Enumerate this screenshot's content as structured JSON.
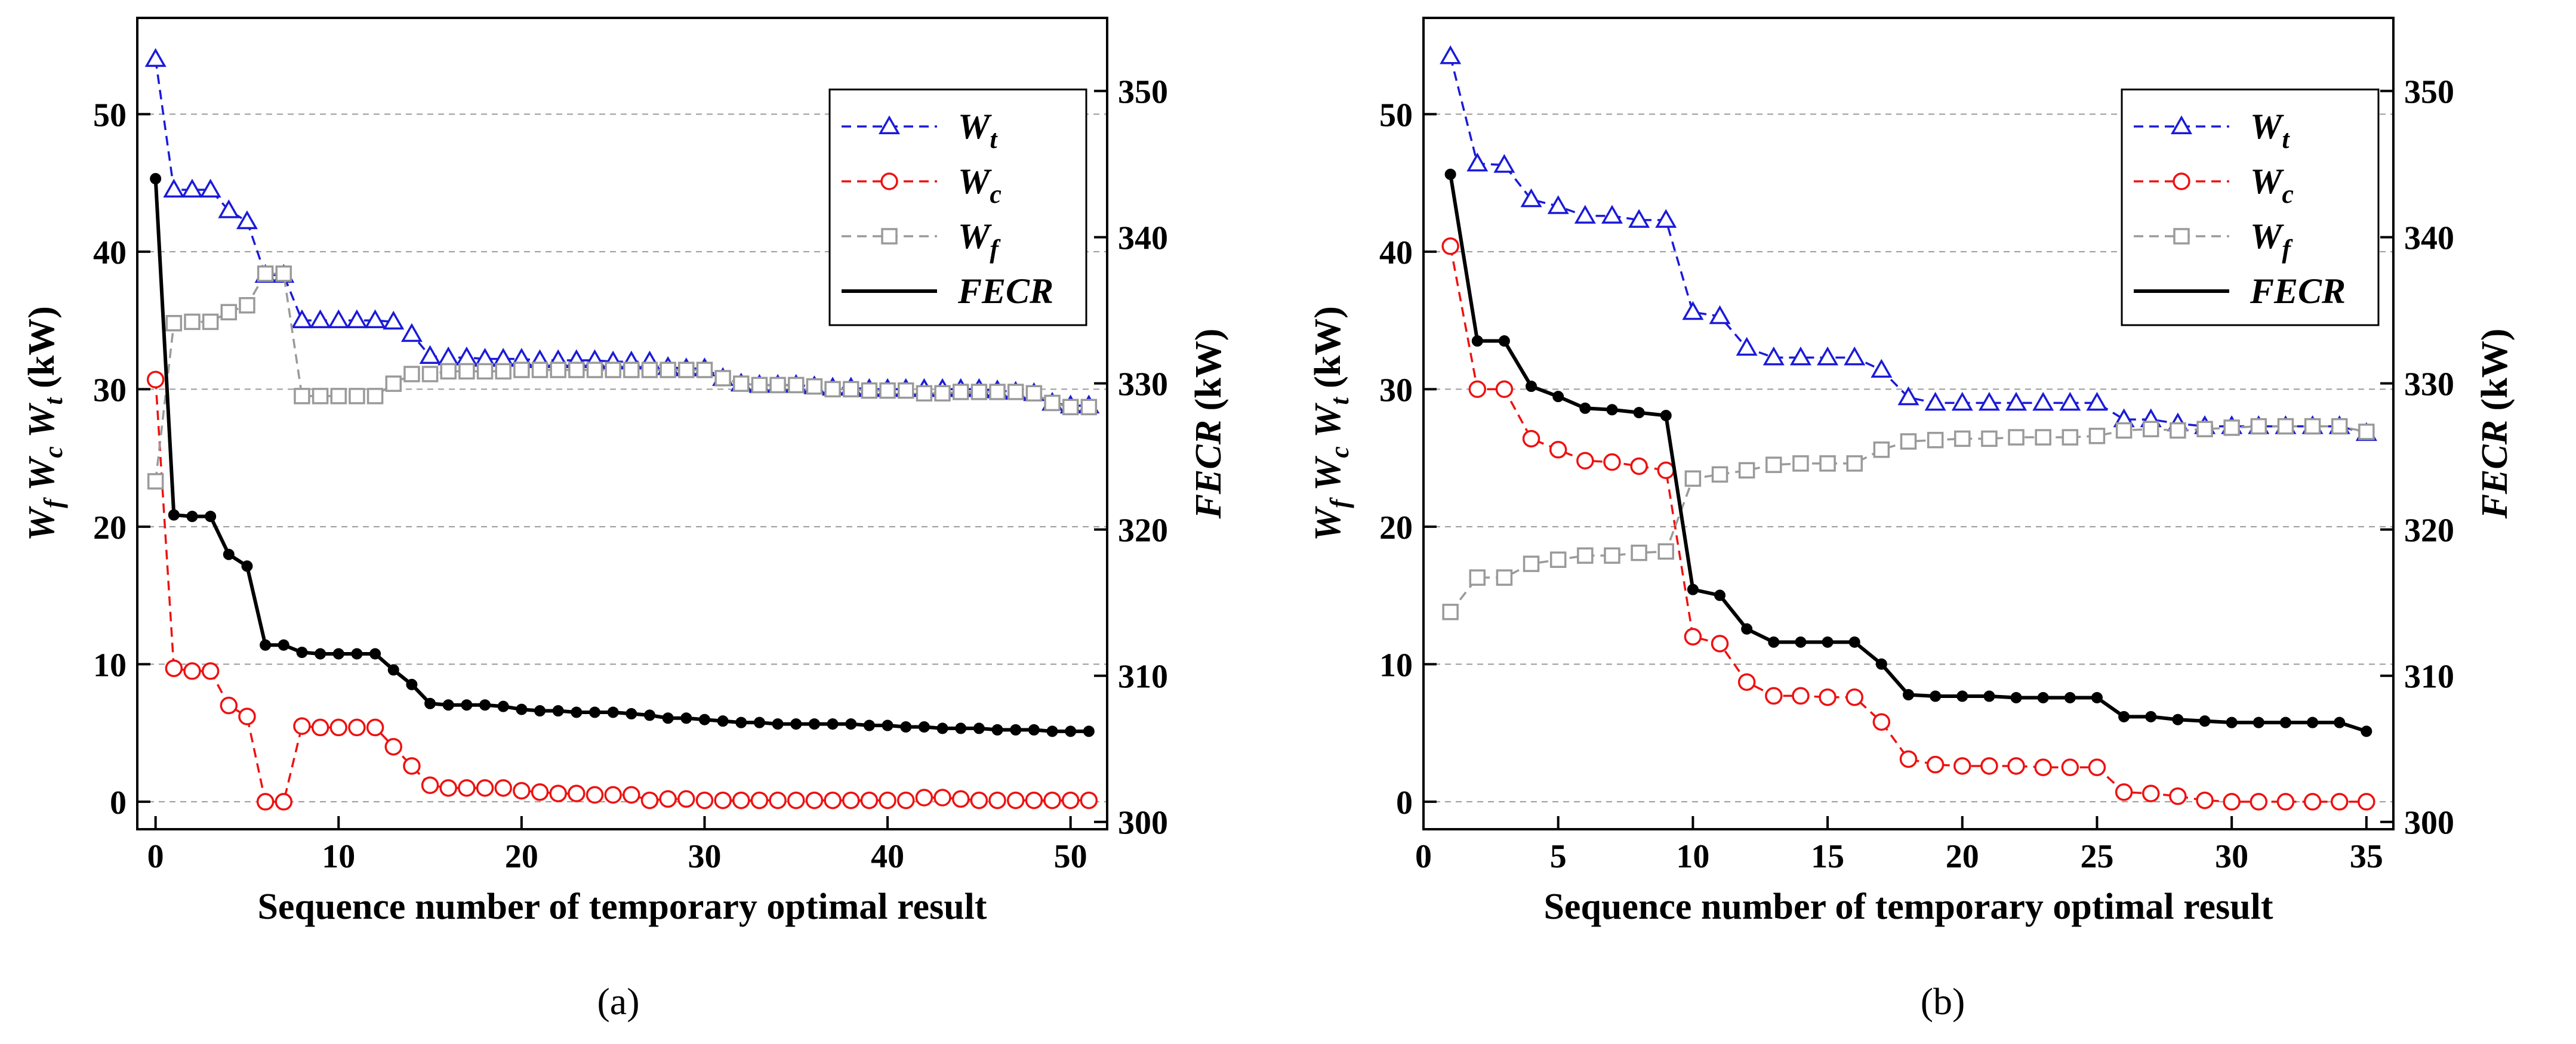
{
  "figure": {
    "colors": {
      "wt": "#1a1ad9",
      "wc": "#ee1111",
      "wf": "#9a9a9a",
      "fecr": "#000000",
      "grid": "#9a9a9a"
    }
  },
  "chart_data": [
    {
      "type": "line",
      "panel_label": "(a)",
      "xlabel": "Sequence number of temporary optimal result",
      "ylabel_left": "W_f W_c W_t (kW)",
      "ylabel_right": "FECR (kW)",
      "xlim": [
        -1,
        52
      ],
      "ylim_left": [
        -2,
        57
      ],
      "ylim_right": [
        299.5,
        355
      ],
      "x_ticks": [
        0,
        10,
        20,
        30,
        40,
        50
      ],
      "y_ticks_left": [
        0,
        10,
        20,
        30,
        40,
        50
      ],
      "y_ticks_right": [
        300,
        310,
        320,
        330,
        340,
        350
      ],
      "grid": "horizontal dashed",
      "legend": "top-right",
      "x": [
        0,
        1,
        2,
        3,
        4,
        5,
        6,
        7,
        8,
        9,
        10,
        11,
        12,
        13,
        14,
        15,
        16,
        17,
        18,
        19,
        20,
        21,
        22,
        23,
        24,
        25,
        26,
        27,
        28,
        29,
        30,
        31,
        32,
        33,
        34,
        35,
        36,
        37,
        38,
        39,
        40,
        41,
        42,
        43,
        44,
        45,
        46,
        47,
        48,
        49,
        50,
        51
      ],
      "series": [
        {
          "name": "W_t",
          "axis": "left",
          "style": "dashed",
          "marker": "triangle",
          "color": "#1a1ad9",
          "values": [
            54.0,
            44.5,
            44.5,
            44.5,
            43.0,
            42.2,
            38.3,
            38.3,
            35.0,
            35.0,
            35.0,
            35.0,
            35.0,
            34.9,
            34.0,
            32.4,
            32.3,
            32.3,
            32.2,
            32.2,
            32.2,
            32.1,
            32.1,
            32.1,
            32.1,
            32.0,
            32.0,
            32.0,
            31.6,
            31.5,
            31.5,
            30.8,
            30.4,
            30.3,
            30.3,
            30.3,
            30.2,
            30.1,
            30.1,
            30.0,
            30.0,
            30.0,
            30.0,
            30.0,
            30.0,
            30.0,
            29.9,
            29.8,
            29.7,
            29.0,
            28.8,
            28.8
          ]
        },
        {
          "name": "W_c",
          "axis": "left",
          "style": "dashed",
          "marker": "circle",
          "color": "#ee1111",
          "values": [
            30.7,
            9.7,
            9.5,
            9.5,
            7.0,
            6.2,
            0.0,
            0.0,
            5.5,
            5.4,
            5.4,
            5.4,
            5.4,
            4.0,
            2.6,
            1.2,
            1.0,
            1.0,
            1.0,
            1.0,
            0.8,
            0.7,
            0.6,
            0.6,
            0.5,
            0.5,
            0.5,
            0.1,
            0.2,
            0.2,
            0.1,
            0.1,
            0.1,
            0.1,
            0.1,
            0.1,
            0.1,
            0.1,
            0.1,
            0.1,
            0.1,
            0.1,
            0.3,
            0.3,
            0.2,
            0.1,
            0.1,
            0.1,
            0.1,
            0.1,
            0.1,
            0.1
          ]
        },
        {
          "name": "W_f",
          "axis": "left",
          "style": "dashed",
          "marker": "square",
          "color": "#9a9a9a",
          "values": [
            23.3,
            34.8,
            34.9,
            34.9,
            35.6,
            36.1,
            38.4,
            38.4,
            29.5,
            29.5,
            29.5,
            29.5,
            29.5,
            30.4,
            31.1,
            31.1,
            31.3,
            31.3,
            31.3,
            31.3,
            31.4,
            31.4,
            31.4,
            31.4,
            31.4,
            31.4,
            31.4,
            31.4,
            31.4,
            31.4,
            31.4,
            30.8,
            30.4,
            30.3,
            30.3,
            30.3,
            30.2,
            30.0,
            30.0,
            29.9,
            29.9,
            29.9,
            29.7,
            29.7,
            29.8,
            29.8,
            29.8,
            29.8,
            29.7,
            29.0,
            28.7,
            28.7
          ]
        },
        {
          "name": "FECR",
          "axis": "right",
          "style": "solid",
          "marker": "dot",
          "color": "#000000",
          "values": [
            344.0,
            321.0,
            320.9,
            320.9,
            318.3,
            317.5,
            312.1,
            312.1,
            311.6,
            311.5,
            311.5,
            311.5,
            311.5,
            310.4,
            309.4,
            308.1,
            308.0,
            308.0,
            308.0,
            307.9,
            307.7,
            307.6,
            307.6,
            307.5,
            307.5,
            307.5,
            307.4,
            307.3,
            307.1,
            307.1,
            307.0,
            306.9,
            306.8,
            306.8,
            306.7,
            306.7,
            306.7,
            306.7,
            306.7,
            306.6,
            306.6,
            306.5,
            306.5,
            306.4,
            306.4,
            306.4,
            306.3,
            306.3,
            306.3,
            306.2,
            306.2,
            306.2
          ]
        }
      ]
    },
    {
      "type": "line",
      "panel_label": "(b)",
      "xlabel": "Sequence number of temporary optimal result",
      "ylabel_left": "W_f W_c W_t (kW)",
      "ylabel_right": "FECR (kW)",
      "xlim": [
        0,
        36
      ],
      "ylim_left": [
        -2,
        57
      ],
      "ylim_right": [
        299.5,
        355
      ],
      "x_ticks": [
        0,
        5,
        10,
        15,
        20,
        25,
        30,
        35
      ],
      "y_ticks_left": [
        0,
        10,
        20,
        30,
        40,
        50
      ],
      "y_ticks_right": [
        300,
        310,
        320,
        330,
        340,
        350
      ],
      "grid": "horizontal dashed",
      "legend": "top-right",
      "x": [
        1,
        2,
        3,
        4,
        5,
        6,
        7,
        8,
        9,
        10,
        11,
        12,
        13,
        14,
        15,
        16,
        17,
        18,
        19,
        20,
        21,
        22,
        23,
        24,
        25,
        26,
        27,
        28,
        29,
        30,
        31,
        32,
        33,
        34,
        35
      ],
      "series": [
        {
          "name": "W_t",
          "axis": "left",
          "style": "dashed",
          "marker": "triangle",
          "color": "#1a1ad9",
          "values": [
            54.2,
            46.4,
            46.3,
            43.8,
            43.3,
            42.6,
            42.6,
            42.3,
            42.3,
            35.6,
            35.3,
            33.0,
            32.3,
            32.3,
            32.3,
            32.3,
            31.4,
            29.4,
            29.0,
            29.0,
            29.0,
            29.0,
            29.0,
            29.0,
            29.0,
            27.8,
            27.8,
            27.5,
            27.3,
            27.3,
            27.3,
            27.3,
            27.3,
            27.3,
            26.8
          ]
        },
        {
          "name": "W_c",
          "axis": "left",
          "style": "dashed",
          "marker": "circle",
          "color": "#ee1111",
          "values": [
            40.4,
            30.0,
            30.0,
            26.4,
            25.6,
            24.8,
            24.7,
            24.4,
            24.1,
            12.0,
            11.5,
            8.7,
            7.7,
            7.7,
            7.6,
            7.6,
            5.8,
            3.1,
            2.7,
            2.6,
            2.6,
            2.6,
            2.5,
            2.5,
            2.5,
            0.7,
            0.6,
            0.4,
            0.1,
            0.0,
            0.0,
            0.0,
            0.0,
            0.0,
            0.0
          ]
        },
        {
          "name": "W_f",
          "axis": "left",
          "style": "dashed",
          "marker": "square",
          "color": "#9a9a9a",
          "values": [
            13.8,
            16.3,
            16.3,
            17.3,
            17.6,
            17.9,
            17.9,
            18.1,
            18.2,
            23.5,
            23.8,
            24.1,
            24.5,
            24.6,
            24.6,
            24.6,
            25.6,
            26.2,
            26.3,
            26.4,
            26.4,
            26.5,
            26.5,
            26.5,
            26.6,
            27.0,
            27.1,
            27.0,
            27.1,
            27.2,
            27.3,
            27.3,
            27.3,
            27.3,
            26.9
          ]
        },
        {
          "name": "FECR",
          "axis": "right",
          "style": "solid",
          "marker": "dot",
          "color": "#000000",
          "values": [
            344.3,
            332.9,
            332.9,
            329.8,
            329.1,
            328.3,
            328.2,
            328.0,
            327.8,
            315.9,
            315.5,
            313.2,
            312.3,
            312.3,
            312.3,
            312.3,
            310.8,
            308.7,
            308.6,
            308.6,
            308.6,
            308.5,
            308.5,
            308.5,
            308.5,
            307.2,
            307.2,
            307.0,
            306.9,
            306.8,
            306.8,
            306.8,
            306.8,
            306.8,
            306.2
          ]
        }
      ]
    }
  ]
}
